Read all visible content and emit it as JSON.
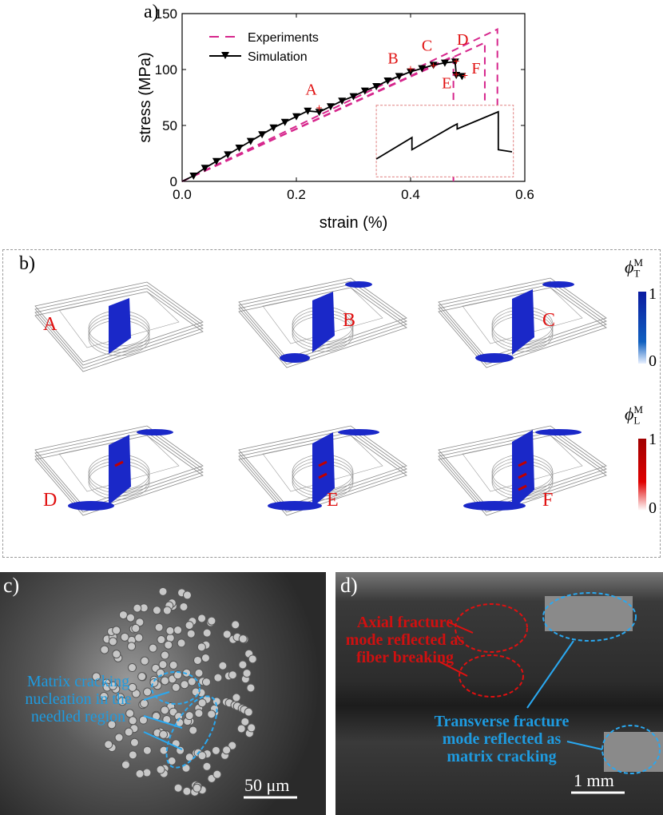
{
  "panel_labels": {
    "a": "a)",
    "b": "b)",
    "c": "c)",
    "d": "d)"
  },
  "chart_data": {
    "type": "line",
    "xlabel": "strain (%)",
    "ylabel": "stress (MPa)",
    "xlim": [
      0,
      0.6
    ],
    "ylim": [
      0,
      150
    ],
    "xticks": [
      "0.0",
      "0.2",
      "0.4",
      "0.6"
    ],
    "yticks": [
      "0",
      "50",
      "100",
      "150"
    ],
    "legend": {
      "placement": "top-left",
      "entries": [
        "Experiments",
        "Simulation"
      ]
    },
    "series": [
      {
        "name": "Experiments",
        "style": "dashed",
        "color": "#d6268c",
        "curves": [
          {
            "x": [
              0,
              0.475,
              0.475
            ],
            "y": [
              0,
              112,
              0
            ]
          },
          {
            "x": [
              0,
              0.53,
              0.53
            ],
            "y": [
              0,
              124,
              68
            ]
          },
          {
            "x": [
              0,
              0.552,
              0.552
            ],
            "y": [
              0,
              136,
              68
            ]
          }
        ]
      },
      {
        "name": "Simulation",
        "style": "solid-triangle",
        "color": "#000000",
        "x": [
          0,
          0.02,
          0.04,
          0.06,
          0.08,
          0.1,
          0.12,
          0.14,
          0.16,
          0.18,
          0.2,
          0.22,
          0.24,
          0.26,
          0.28,
          0.3,
          0.32,
          0.34,
          0.36,
          0.38,
          0.4,
          0.42,
          0.44,
          0.46,
          0.478,
          0.48,
          0.49
        ],
        "y": [
          0,
          5,
          12,
          18,
          24,
          30,
          36,
          42,
          48,
          53,
          58,
          63,
          62,
          67,
          72,
          76,
          81,
          85,
          90,
          94,
          98,
          101,
          104,
          106,
          107,
          95,
          94
        ]
      }
    ],
    "annotations": [
      {
        "label": "A",
        "x": 0.24,
        "y": 66
      },
      {
        "label": "B",
        "x": 0.4,
        "y": 101
      },
      {
        "label": "C",
        "x": 0.44,
        "y": 104
      },
      {
        "label": "D",
        "x": 0.48,
        "y": 108
      },
      {
        "label": "E",
        "x": 0.48,
        "y": 96
      },
      {
        "label": "F",
        "x": 0.495,
        "y": 95
      }
    ]
  },
  "panel_b": {
    "states": [
      "A",
      "B",
      "C",
      "D",
      "E",
      "F"
    ],
    "colorbar_T": {
      "symbol": "ϕ",
      "sub": "T",
      "sup": "M",
      "max": "1",
      "min": "0",
      "color": "#0a1aa0"
    },
    "colorbar_L": {
      "symbol": "ϕ",
      "sub": "L",
      "sup": "M",
      "max": "1",
      "min": "0",
      "color": "#c00000"
    }
  },
  "panel_c": {
    "annotation": "Matrix cracking nucleation in the needled region",
    "scale": "50 μm"
  },
  "panel_d": {
    "red_annotation": "Axial fracture mode reflected as fiber breaking",
    "blue_annotation": "Transverse fracture mode reflected as matrix cracking",
    "scale": "1 mm"
  }
}
